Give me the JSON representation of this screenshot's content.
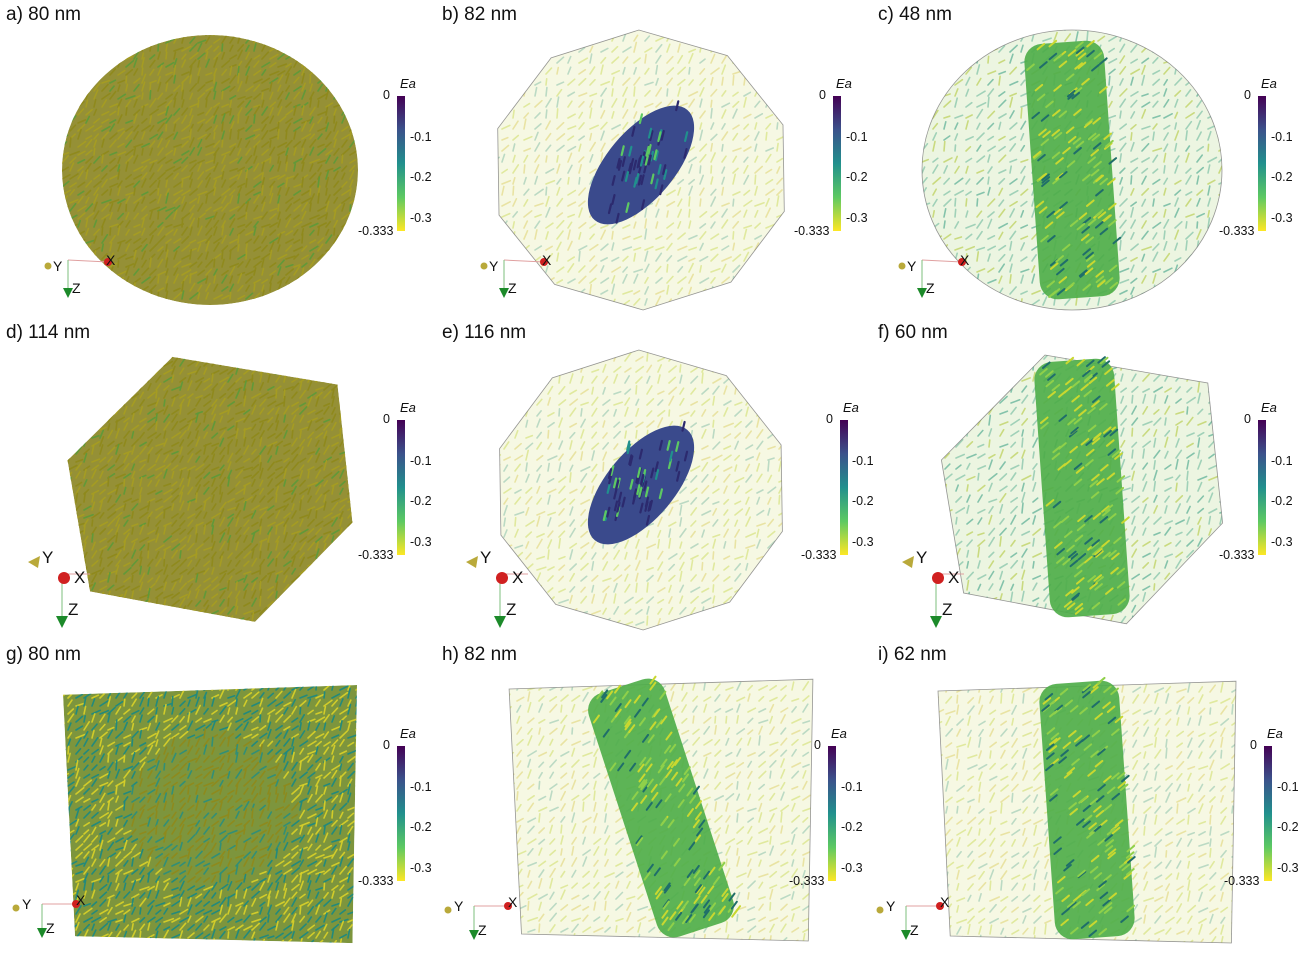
{
  "figure": {
    "panels": [
      {
        "id": "a",
        "label": "a) 80 nm",
        "shape": "sphere",
        "palette": "olive",
        "core": "none"
      },
      {
        "id": "b",
        "label": "b) 82 nm",
        "shape": "polyhedron",
        "palette": "pale",
        "core": "ellipse"
      },
      {
        "id": "c",
        "label": "c) 48 nm",
        "shape": "sphere",
        "palette": "teal-pale",
        "core": "column"
      },
      {
        "id": "d",
        "label": "d) 114 nm",
        "shape": "cube-rot",
        "palette": "olive",
        "core": "none"
      },
      {
        "id": "e",
        "label": "e) 116 nm",
        "shape": "polyhedron",
        "palette": "pale",
        "core": "ellipse"
      },
      {
        "id": "f",
        "label": "f) 60 nm",
        "shape": "cube-rot",
        "palette": "teal-pale",
        "core": "column"
      },
      {
        "id": "g",
        "label": "g) 80 nm",
        "shape": "cube",
        "palette": "olive-teal",
        "core": "none"
      },
      {
        "id": "h",
        "label": "h) 82 nm",
        "shape": "cube",
        "palette": "pale",
        "core": "tilted-column"
      },
      {
        "id": "i",
        "label": "i) 62 nm",
        "shape": "cube",
        "palette": "pale",
        "core": "column"
      }
    ],
    "colorbar": {
      "title": "Ea",
      "ticks": [
        "0",
        "-0.1",
        "-0.2",
        "-0.3",
        "-0.333"
      ],
      "colormap": [
        "#440154",
        "#3b528b",
        "#21908d",
        "#5dc962",
        "#fde725"
      ]
    },
    "axes": {
      "x": "X",
      "y": "Y",
      "z": "Z"
    },
    "colors": {
      "olive": "#8f8a1c",
      "pale": "#d8e6a8",
      "teal": "#2a9a7c",
      "core_green": "#6fbe3e",
      "core_dark": "#2c2a6e",
      "axis_x": "#d02020",
      "axis_y": "#b9a93a",
      "axis_z": "#1c8a2a"
    }
  }
}
